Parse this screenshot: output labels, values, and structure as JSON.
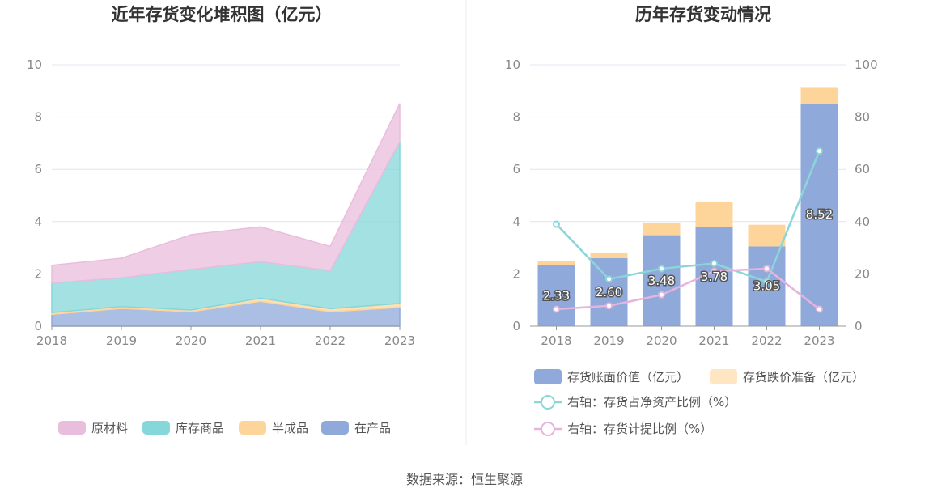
{
  "source_text": "数据来源：恒生聚源",
  "chart_data": [
    {
      "type": "area",
      "stacked": true,
      "title": "近年存货变化堆积图（亿元）",
      "x": [
        "2018",
        "2019",
        "2020",
        "2021",
        "2022",
        "2023"
      ],
      "ylim": [
        0,
        10
      ],
      "yticks": [
        0,
        2,
        4,
        6,
        8,
        10
      ],
      "grid": true,
      "legend_position": "bottom",
      "series": [
        {
          "name": "在产品",
          "color": "#8fa9db",
          "values": [
            0.45,
            0.68,
            0.55,
            0.95,
            0.55,
            0.72
          ]
        },
        {
          "name": "半成品",
          "color": "#fdd59a",
          "values": [
            0.07,
            0.07,
            0.07,
            0.12,
            0.12,
            0.15
          ]
        },
        {
          "name": "库存商品",
          "color": "#85d7da",
          "values": [
            1.13,
            1.1,
            1.55,
            1.4,
            1.45,
            6.18
          ]
        },
        {
          "name": "原材料",
          "color": "#e9bddc",
          "values": [
            0.68,
            0.75,
            1.33,
            1.33,
            0.93,
            1.47
          ]
        }
      ],
      "legend_order": [
        "原材料",
        "库存商品",
        "半成品",
        "在产品"
      ]
    },
    {
      "type": "bar",
      "stacked": true,
      "title": "历年存货变动情况",
      "categories": [
        "2018",
        "2019",
        "2020",
        "2021",
        "2022",
        "2023"
      ],
      "ylim": [
        0,
        10
      ],
      "yticks": [
        0,
        2,
        4,
        6,
        8,
        10
      ],
      "y2lim": [
        0,
        100
      ],
      "y2ticks": [
        0,
        20,
        40,
        60,
        80,
        100
      ],
      "grid": true,
      "legend_position": "bottom",
      "series": [
        {
          "name": "存货账面价值（亿元）",
          "type": "bar",
          "axis": "left",
          "color": "#8fa9db",
          "values": [
            2.33,
            2.6,
            3.48,
            3.78,
            3.05,
            8.52
          ],
          "labels": [
            "2.33",
            "2.60",
            "3.48",
            "3.78",
            "3.05",
            "8.52"
          ]
        },
        {
          "name": "存货跌价准备（亿元）",
          "type": "bar",
          "axis": "left",
          "color": "#fdd59a",
          "values": [
            0.17,
            0.22,
            0.48,
            0.98,
            0.83,
            0.6
          ]
        },
        {
          "name": "右轴：存货占净资产比例（%）",
          "type": "line",
          "axis": "right",
          "color": "#8ad6d8",
          "values": [
            39,
            18,
            22,
            24,
            17,
            67
          ]
        },
        {
          "name": "右轴：存货计提比例（%）",
          "type": "line",
          "axis": "right",
          "color": "#e6b3dc",
          "values": [
            6.5,
            7.8,
            12,
            21,
            22,
            6.5
          ]
        }
      ]
    }
  ]
}
